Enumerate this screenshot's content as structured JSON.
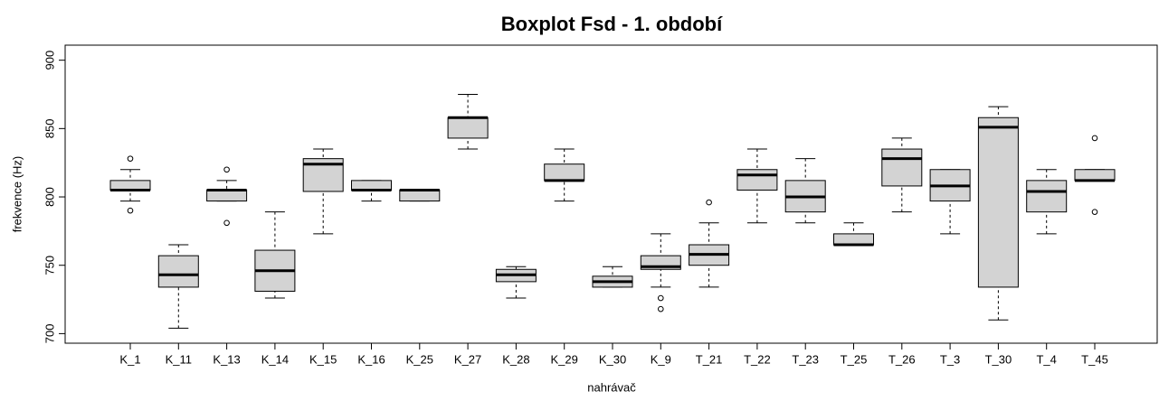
{
  "chart_data": {
    "type": "box",
    "title": "Boxplot Fsd - 1. období",
    "x_label": "nahrávač",
    "y_label": "frekvence (Hz)",
    "categories": [
      "K_1",
      "K_11",
      "K_13",
      "K_14",
      "K_15",
      "K_16",
      "K_25",
      "K_27",
      "K_28",
      "K_29",
      "K_30",
      "K_9",
      "T_21",
      "T_22",
      "T_23",
      "T_25",
      "T_26",
      "T_3",
      "T_30",
      "T_4",
      "T_45"
    ],
    "whisker_low": [
      797,
      704,
      797,
      726,
      773,
      797,
      797,
      835,
      726,
      797,
      734,
      734,
      734,
      781,
      781,
      765,
      789,
      773,
      710,
      773,
      812
    ],
    "q1": [
      805,
      734,
      797,
      731,
      804,
      805,
      797,
      843,
      738,
      812,
      734,
      747,
      750,
      805,
      789,
      765,
      808,
      797,
      734,
      789,
      812
    ],
    "median": [
      805,
      743,
      805,
      746,
      824,
      805,
      805,
      858,
      743,
      812,
      738,
      749,
      758,
      816,
      800,
      765,
      828,
      808,
      851,
      804,
      812
    ],
    "q3": [
      812,
      757,
      805,
      761,
      828,
      812,
      805,
      858,
      747,
      824,
      742,
      757,
      765,
      820,
      812,
      773,
      835,
      820,
      858,
      812,
      820
    ],
    "whisker_high": [
      820,
      765,
      812,
      789,
      835,
      812,
      805,
      875,
      749,
      835,
      749,
      773,
      781,
      835,
      828,
      781,
      843,
      820,
      866,
      820,
      820
    ],
    "outliers": [
      [
        828,
        790
      ],
      [],
      [
        820,
        781
      ],
      [],
      [],
      [],
      [],
      [],
      [],
      [],
      [],
      [
        726,
        718
      ],
      [
        796
      ],
      [],
      [],
      [],
      [],
      [],
      [],
      [],
      [
        843,
        789
      ]
    ],
    "box_color": "#d3d3d3",
    "ylim": [
      693,
      911
    ],
    "yticks": [
      700,
      750,
      800,
      850,
      900
    ]
  }
}
